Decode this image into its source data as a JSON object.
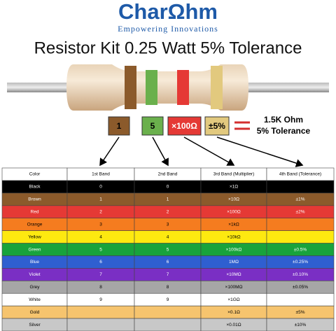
{
  "header": {
    "logo": "CharΩhm",
    "tagline": "Empowering Innovations",
    "title": "Resistor Kit 0.25 Watt 5% Tolerance"
  },
  "example": {
    "bands": [
      {
        "label": "1",
        "color": "#8b5a2b"
      },
      {
        "label": "5",
        "color": "#6ab04c"
      },
      {
        "label": "×100Ω",
        "color": "#e53935"
      },
      {
        "label": "±5%",
        "color": "#e2c97e"
      }
    ],
    "result": [
      "1.5K Ohm",
      "5% Tolerance"
    ]
  },
  "table": {
    "header": [
      "Color",
      "1st Band",
      "2nd Band",
      "3rd Band (Multiplier)",
      "4th Band (Tolerance)"
    ],
    "rows": [
      [
        "Black",
        "0",
        "0",
        "×1Ω",
        null
      ],
      [
        "Brown",
        "1",
        "1",
        "×10Ω",
        "±1%"
      ],
      [
        "Red",
        "2",
        "2",
        "×100Ω",
        "±2%"
      ],
      [
        "Orange",
        "3",
        "3",
        "×1kΩ",
        null
      ],
      [
        "Yellow",
        "4",
        "4",
        "×10kΩ",
        null
      ],
      [
        "Green",
        "5",
        "5",
        "×100kΩ",
        "±0.5%"
      ],
      [
        "Blue",
        "6",
        "6",
        "1MΩ",
        "±0.25%"
      ],
      [
        "Violet",
        "7",
        "7",
        "×10MΩ",
        "±0.10%"
      ],
      [
        "Grey",
        "8",
        "8",
        "×100MΩ",
        "±0.05%"
      ],
      [
        "White",
        "9",
        "9",
        "×1GΩ",
        null
      ],
      [
        "Gold",
        null,
        null,
        "×0.1Ω",
        "±5%"
      ],
      [
        "Silver",
        null,
        null,
        "×0.01Ω",
        "±10%"
      ]
    ],
    "row_colors": [
      "#000000",
      "#8b5a2b",
      "#e53935",
      "#f57c1f",
      "#fde910",
      "#18a33c",
      "#2f5fd0",
      "#7a2fc4",
      "#a6a6a6",
      "#ffffff",
      "#f6c46e",
      "#c8c8c8"
    ],
    "text_colors": [
      "#ffffff",
      "#ffffff",
      "#ffffff",
      "#000000",
      "#000000",
      "#ffffff",
      "#ffffff",
      "#ffffff",
      "#000000",
      "#000000",
      "#000000",
      "#000000"
    ]
  }
}
